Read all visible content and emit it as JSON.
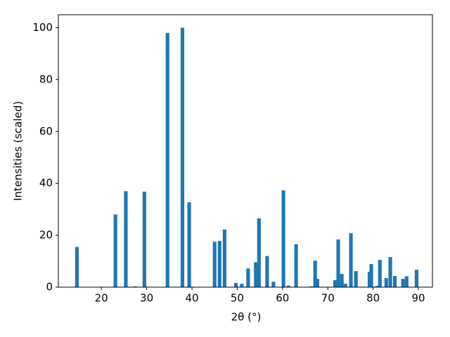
{
  "chart_data": {
    "type": "bar",
    "x_label": "2θ (°)",
    "y_label": "Intensities (scaled)",
    "x": [
      14.6,
      23.1,
      25.4,
      27.5,
      29.5,
      34.6,
      37.9,
      39.4,
      45.0,
      46.1,
      47.2,
      49.7,
      51.0,
      52.4,
      54.1,
      54.8,
      56.6,
      58.0,
      60.2,
      61.3,
      63.0,
      66.4,
      67.2,
      67.7,
      71.6,
      72.3,
      73.1,
      73.9,
      75.1,
      76.2,
      79.2,
      79.6,
      80.9,
      81.5,
      82.9,
      83.8,
      84.8,
      86.6,
      87.4,
      89.6
    ],
    "values": [
      15.5,
      28,
      37,
      0.3,
      36.8,
      98,
      100,
      32.7,
      17.5,
      17.8,
      22.2,
      1.6,
      1.3,
      7.2,
      9.6,
      26.5,
      12,
      2.1,
      37.3,
      0.6,
      16.5,
      0.3,
      10.2,
      3.2,
      2.7,
      18.4,
      5.1,
      1.3,
      20.8,
      6.2,
      5.9,
      8.9,
      0.5,
      10.5,
      3.5,
      11.6,
      4.3,
      3.2,
      4.2,
      6.7
    ],
    "color": "#1f77b4",
    "xlim": [
      10.5,
      93.1
    ],
    "xticks": [
      20,
      30,
      40,
      50,
      60,
      70,
      80,
      90
    ],
    "ylim": [
      0,
      105
    ],
    "yticks": [
      0,
      20,
      40,
      60,
      80,
      100
    ]
  }
}
